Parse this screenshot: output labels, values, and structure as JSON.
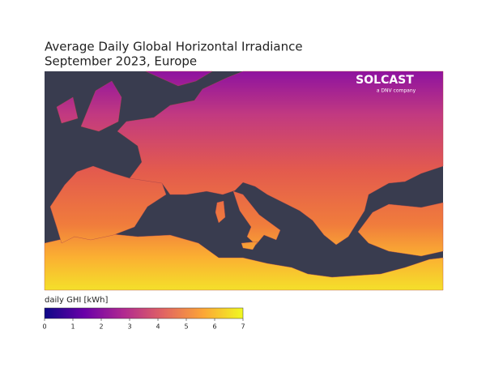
{
  "title": [
    "Average Daily Global Horizontal Irradiance",
    "September 2023, Europe"
  ],
  "logo": {
    "name": "SOLCAST",
    "tagline": "a DNV company"
  },
  "colorbar": {
    "label": "daily GHI [kWh]",
    "range": [
      0,
      7
    ],
    "ticks": [
      0,
      1,
      2,
      3,
      4,
      5,
      6,
      7
    ],
    "colors": [
      "#0d0887",
      "#6a00a8",
      "#b12a90",
      "#e16462",
      "#fca636",
      "#f0f921"
    ]
  }
}
